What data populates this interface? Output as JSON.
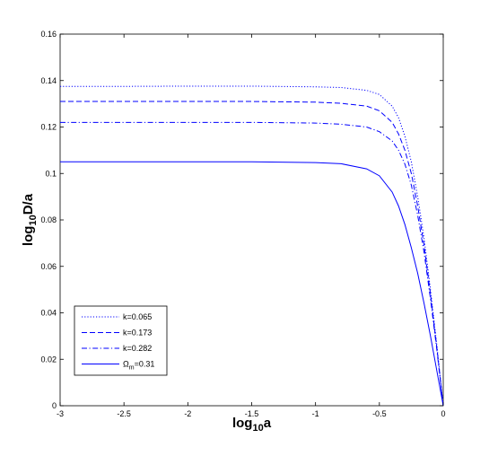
{
  "chart_data": {
    "type": "line",
    "xlabel": {
      "base": "log",
      "sub": "10",
      "rest": "a"
    },
    "ylabel": {
      "base": "log",
      "sub": "10",
      "rest": "D/a"
    },
    "xlim": [
      -3,
      0
    ],
    "ylim": [
      0,
      0.16
    ],
    "x_ticks": [
      -3,
      -2.5,
      -2,
      -1.5,
      -1,
      -0.5,
      0
    ],
    "x_tick_labels": [
      "-3",
      "-2.5",
      "-2",
      "-1.5",
      "-1",
      "-0.5",
      "0"
    ],
    "y_ticks": [
      0,
      0.02,
      0.04,
      0.06,
      0.08,
      0.1,
      0.12,
      0.14,
      0.16
    ],
    "y_tick_labels": [
      "0",
      "0.02",
      "0.04",
      "0.06",
      "0.08",
      "0.1",
      "0.12",
      "0.14",
      "0.16"
    ],
    "grid": false,
    "legend_position": "bottom-left",
    "line_color": "#0000ff",
    "series": [
      {
        "name": "k=0.065",
        "dash": "dotted",
        "x": [
          -3,
          -2.5,
          -2,
          -1.5,
          -1,
          -0.8,
          -0.6,
          -0.5,
          -0.4,
          -0.35,
          -0.3,
          -0.25,
          -0.2,
          -0.15,
          -0.1,
          -0.05,
          0
        ],
        "y": [
          0.1375,
          0.1375,
          0.1376,
          0.1376,
          0.1373,
          0.137,
          0.1358,
          0.134,
          0.129,
          0.124,
          0.116,
          0.105,
          0.09,
          0.072,
          0.05,
          0.026,
          0
        ]
      },
      {
        "name": "k=0.173",
        "dash": "dashed",
        "x": [
          -3,
          -2.5,
          -2,
          -1.5,
          -1,
          -0.8,
          -0.6,
          -0.5,
          -0.4,
          -0.35,
          -0.3,
          -0.25,
          -0.2,
          -0.15,
          -0.1,
          -0.05,
          0
        ],
        "y": [
          0.131,
          0.131,
          0.131,
          0.131,
          0.1307,
          0.1302,
          0.129,
          0.127,
          0.122,
          0.117,
          0.11,
          0.1,
          0.086,
          0.069,
          0.048,
          0.025,
          0
        ]
      },
      {
        "name": "k=0.282",
        "dash": "dashdot",
        "x": [
          -3,
          -2.5,
          -2,
          -1.5,
          -1,
          -0.8,
          -0.6,
          -0.5,
          -0.4,
          -0.35,
          -0.3,
          -0.25,
          -0.2,
          -0.15,
          -0.1,
          -0.05,
          0
        ],
        "y": [
          0.122,
          0.122,
          0.122,
          0.122,
          0.1217,
          0.1212,
          0.12,
          0.118,
          0.114,
          0.11,
          0.104,
          0.095,
          0.082,
          0.066,
          0.046,
          0.024,
          0
        ]
      },
      {
        "name": "Ω_m=0.31",
        "name_base": "Ω",
        "name_sub": "m",
        "name_rest": "=0.31",
        "dash": "solid",
        "x": [
          -3,
          -2.5,
          -2,
          -1.5,
          -1,
          -0.8,
          -0.6,
          -0.5,
          -0.4,
          -0.35,
          -0.3,
          -0.25,
          -0.2,
          -0.15,
          -0.1,
          -0.05,
          0
        ],
        "y": [
          0.105,
          0.105,
          0.105,
          0.105,
          0.1047,
          0.1042,
          0.102,
          0.099,
          0.092,
          0.086,
          0.078,
          0.068,
          0.057,
          0.044,
          0.03,
          0.015,
          0
        ]
      }
    ]
  }
}
